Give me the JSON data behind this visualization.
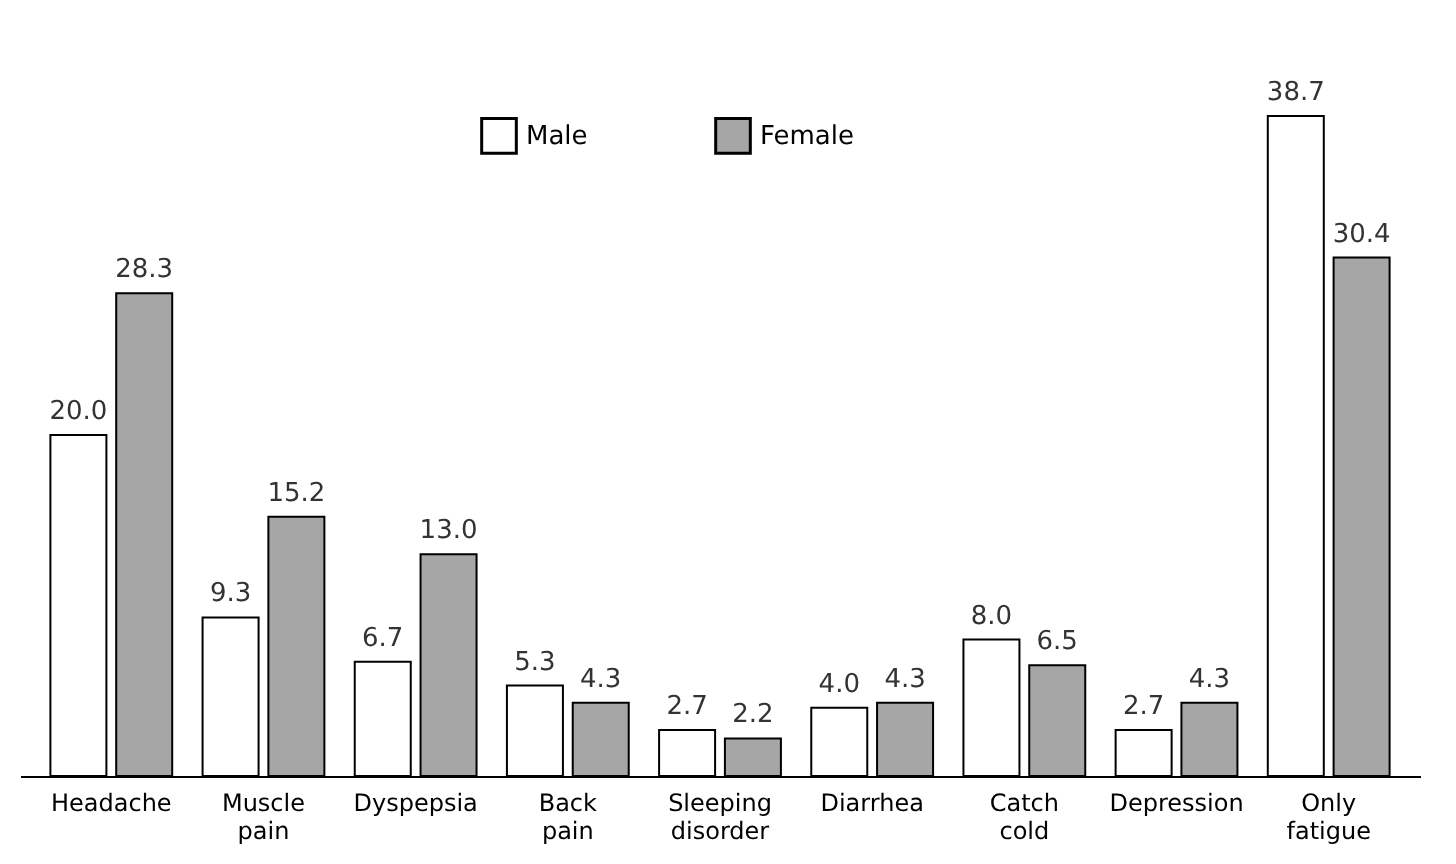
{
  "chart_data": {
    "type": "bar",
    "categories": [
      "Headache",
      "Muscle pain",
      "Dyspepsia",
      "Back pain",
      "Sleeping disorder",
      "Diarrhea",
      "Catch cold",
      "Depression",
      "Only fatigue"
    ],
    "series": [
      {
        "name": "Male",
        "color": "#ffffff",
        "values": [
          20.0,
          9.3,
          6.7,
          5.3,
          2.7,
          4.0,
          8.0,
          2.7,
          38.7
        ],
        "value_labels": [
          "20.0",
          "9.3",
          "6.7",
          "5.3",
          "2.7",
          "4.0",
          "8.0",
          "2.7",
          "38.7"
        ]
      },
      {
        "name": "Female",
        "color": "#a6a6a6",
        "values": [
          28.3,
          15.2,
          13.0,
          4.3,
          2.2,
          4.3,
          6.5,
          4.3,
          30.4
        ],
        "value_labels": [
          "28.3",
          "15.2",
          "13.0",
          "4.3",
          "2.2",
          "4.3",
          "6.5",
          "4.3",
          "30.4"
        ]
      }
    ],
    "legend": "top",
    "grid": false
  }
}
